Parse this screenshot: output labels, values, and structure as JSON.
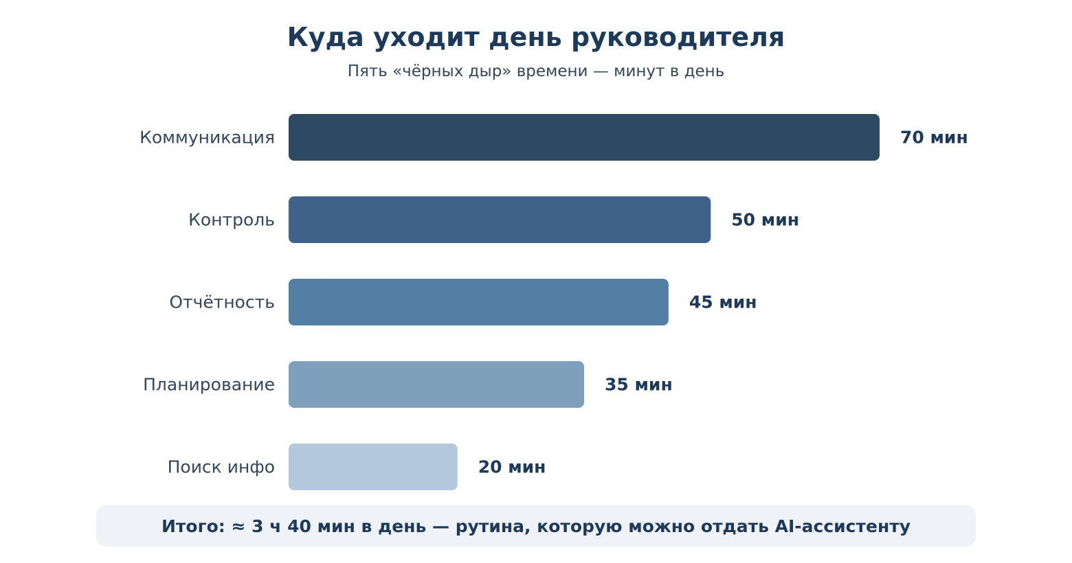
{
  "chart_data": {
    "type": "bar",
    "orientation": "horizontal",
    "title": "Куда уходит день руководителя",
    "subtitle": "Пять «чёрных дыр» времени — минут в день",
    "categories": [
      "Коммуникация",
      "Контроль",
      "Отчётность",
      "Планирование",
      "Поиск инфо"
    ],
    "values": [
      70,
      50,
      45,
      35,
      20
    ],
    "value_labels": [
      "70 мин",
      "50 мин",
      "45 мин",
      "35 мин",
      "20 мин"
    ],
    "colors": [
      "#2e4a63",
      "#3f6288",
      "#527fa3",
      "#7fa0bd",
      "#b3c8da"
    ],
    "xlim": [
      0,
      70
    ],
    "grid": false
  },
  "footer": {
    "text": "Итого: ≈ 3 ч 40 мин в день — рутина, которую можно отдать AI-ассистенту"
  }
}
